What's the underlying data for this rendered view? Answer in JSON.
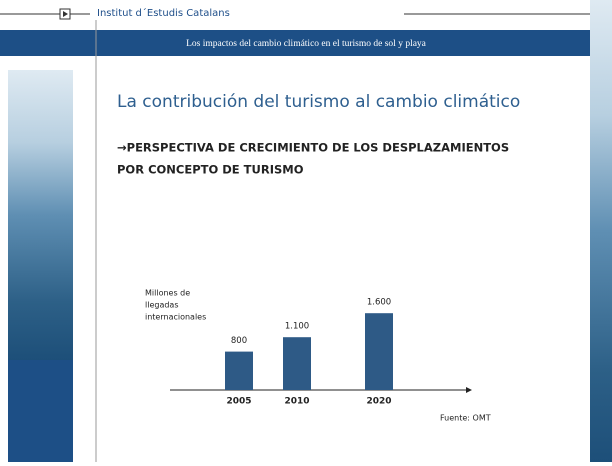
{
  "header": {
    "institution": "Institut d´Estudis Catalans",
    "banner": "Los impactos del cambio climático en el turismo de sol y playa"
  },
  "slide": {
    "title": "La contribución del turismo al cambio climático",
    "subtitle_lines": [
      "→PERSPECTIVA DE CRECIMIENTO DE LOS DESPLAZAMIENTOS",
      "POR CONCEPTO DE TURISMO"
    ],
    "source": "Fuente: OMT"
  },
  "chart_data": {
    "type": "bar",
    "y_label_lines": [
      "Millones de",
      "llegadas",
      "internacionales"
    ],
    "categories": [
      "2005",
      "2010",
      "2020"
    ],
    "values": [
      800,
      1100,
      1600
    ],
    "value_labels": [
      "800",
      "1.100",
      "1.600"
    ],
    "color": "#2e5a86"
  }
}
